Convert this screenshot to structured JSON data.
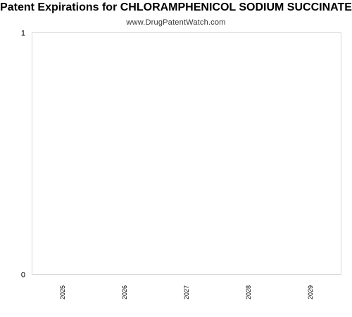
{
  "chart_data": {
    "type": "bar",
    "title": "Patent Expirations for CHLORAMPHENICOL SODIUM SUCCINATE",
    "subtitle": "www.DrugPatentWatch.com",
    "categories": [
      "2025",
      "2026",
      "2027",
      "2028",
      "2029"
    ],
    "values": [
      0,
      0,
      0,
      0,
      0
    ],
    "xlabel": "",
    "ylabel": "",
    "ylim": [
      0,
      1
    ],
    "yticks": [
      "0",
      "1"
    ],
    "grid": false,
    "legend": "none"
  },
  "colors": {
    "plot_border": "#d9d9d9",
    "axis_text": "#000000"
  }
}
